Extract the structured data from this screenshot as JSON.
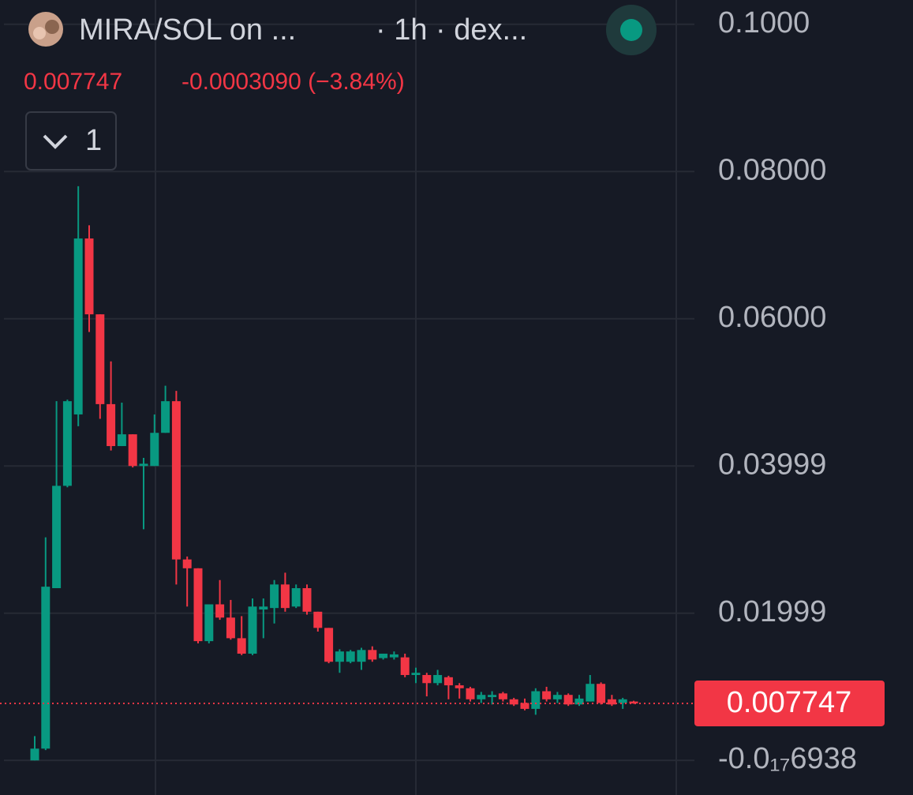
{
  "header": {
    "symbol": "MIRA/SOL on ...",
    "interval": "· 1h · dex...",
    "price": "0.007747",
    "change": "-0.0003090 (−3.84%)",
    "indicator_count": "1"
  },
  "chart_data": {
    "type": "candlestick",
    "up_color": "#089981",
    "down_color": "#f23645",
    "ylim": [
      -0.0047,
      0.1033
    ],
    "yticks": [
      {
        "value": 0.1,
        "label": "0.1000"
      },
      {
        "value": 0.08,
        "label": "0.08000"
      },
      {
        "value": 0.06,
        "label": "0.06000"
      },
      0.03999,
      0.01999,
      {
        "value": -6.938e-19,
        "label": "-0.0₁₇6938"
      }
    ],
    "grid": true,
    "last_price": 0.007747,
    "open": [
      0.0,
      0.0016,
      0.0234,
      0.0373,
      0.047,
      0.0709,
      0.0606,
      0.0484,
      0.0427,
      0.0443,
      0.04,
      0.04,
      0.0445,
      0.0488,
      0.0273,
      0.0261,
      0.0162,
      0.0212,
      0.0194,
      0.0166,
      0.0145,
      0.0205,
      0.0207,
      0.0239,
      0.0209,
      0.0234,
      0.0202,
      0.018,
      0.0134,
      0.0134,
      0.0134,
      0.015,
      0.0139,
      0.014,
      0.014,
      0.0116,
      0.0116,
      0.0105,
      0.0113,
      0.0102,
      0.0098,
      0.0083,
      0.0086,
      0.0091,
      0.0083,
      0.0078,
      0.007,
      0.0094,
      0.0083,
      0.0089,
      0.0076,
      0.008,
      0.0104,
      0.0083,
      0.0078,
      0.008
    ],
    "high": [
      0.0033,
      0.0303,
      0.0488,
      0.049,
      0.078,
      0.0727,
      0.0606,
      0.0542,
      0.0486,
      0.0443,
      0.0411,
      0.047,
      0.0509,
      0.0502,
      0.0277,
      0.0261,
      0.0212,
      0.0245,
      0.0218,
      0.0196,
      0.022,
      0.022,
      0.0245,
      0.0255,
      0.0239,
      0.0239,
      0.0202,
      0.018,
      0.0151,
      0.015,
      0.0153,
      0.0155,
      0.0145,
      0.0148,
      0.0145,
      0.0126,
      0.0119,
      0.0123,
      0.0115,
      0.0105,
      0.01,
      0.0093,
      0.0094,
      0.0093,
      0.0085,
      0.0084,
      0.0098,
      0.01,
      0.0093,
      0.0091,
      0.0089,
      0.0116,
      0.0106,
      0.0089,
      0.0085,
      0.0081
    ],
    "low": [
      0.0,
      0.0014,
      0.0234,
      0.0371,
      0.0454,
      0.0582,
      0.0464,
      0.0421,
      0.0427,
      0.0398,
      0.0314,
      0.04,
      0.0445,
      0.0239,
      0.0209,
      0.0159,
      0.0159,
      0.0191,
      0.0164,
      0.0143,
      0.0143,
      0.0166,
      0.0186,
      0.0202,
      0.0207,
      0.0198,
      0.0175,
      0.0132,
      0.0119,
      0.0132,
      0.0123,
      0.0134,
      0.0137,
      0.0137,
      0.0113,
      0.0105,
      0.0087,
      0.0102,
      0.0083,
      0.0084,
      0.008,
      0.0078,
      0.0076,
      0.008,
      0.0074,
      0.0068,
      0.0062,
      0.008,
      0.0078,
      0.0074,
      0.0074,
      0.008,
      0.0076,
      0.0074,
      0.007,
      0.0077
    ],
    "close": [
      0.0016,
      0.0236,
      0.0373,
      0.0488,
      0.0709,
      0.0606,
      0.0484,
      0.0427,
      0.0443,
      0.04,
      0.0403,
      0.0445,
      0.0488,
      0.0273,
      0.0261,
      0.0162,
      0.0212,
      0.0194,
      0.0166,
      0.0145,
      0.0209,
      0.0209,
      0.0239,
      0.0207,
      0.0234,
      0.0202,
      0.018,
      0.0134,
      0.0148,
      0.0148,
      0.015,
      0.0137,
      0.0145,
      0.0144,
      0.0116,
      0.0119,
      0.0105,
      0.0116,
      0.0102,
      0.0098,
      0.0083,
      0.0089,
      0.0089,
      0.0083,
      0.0076,
      0.007,
      0.0094,
      0.0083,
      0.0089,
      0.0076,
      0.0084,
      0.0104,
      0.0078,
      0.0076,
      0.0083,
      0.007747
    ]
  }
}
